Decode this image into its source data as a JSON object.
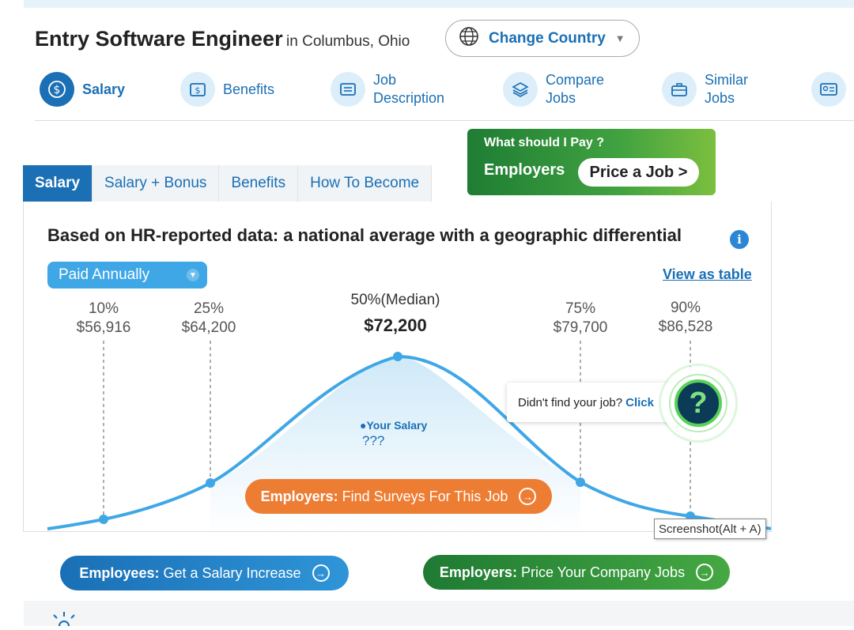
{
  "header": {
    "job_title": "Entry Software Engineer",
    "location": "in Columbus, Ohio",
    "change_country": "Change Country"
  },
  "nav": {
    "items": [
      {
        "label_1": "Salary",
        "label_2": "",
        "icon": "dollar-icon"
      },
      {
        "label_1": "Benefits",
        "label_2": "",
        "icon": "wallet-icon"
      },
      {
        "label_1": "Job",
        "label_2": "Description",
        "icon": "document-icon"
      },
      {
        "label_1": "Compare",
        "label_2": "Jobs",
        "icon": "layers-icon"
      },
      {
        "label_1": "Similar",
        "label_2": "Jobs",
        "icon": "briefcase-icon"
      }
    ]
  },
  "promo": {
    "question": "What should I Pay ?",
    "employers": "Employers",
    "price_button": "Price a Job >"
  },
  "tabs": [
    "Salary",
    "Salary + Bonus",
    "Benefits",
    "How To Become"
  ],
  "panel": {
    "title": "Based on HR-reported data: a national average with a geographic differential",
    "paid_select": "Paid Annually",
    "view_table": "View as table"
  },
  "percentiles": [
    {
      "pct": "10%",
      "value": "$56,916"
    },
    {
      "pct": "25%",
      "value": "$64,200"
    },
    {
      "pct": "50%(Median)",
      "value": "$72,200"
    },
    {
      "pct": "75%",
      "value": "$79,700"
    },
    {
      "pct": "90%",
      "value": "$86,528"
    }
  ],
  "your_salary": {
    "label": "Your Salary",
    "value": "???"
  },
  "find_surveys": {
    "bold": "Employers:",
    "text": "Find Surveys For This Job"
  },
  "didnt_find": {
    "text": "Didn't find your job?",
    "click": "Click"
  },
  "tooltip": "Screenshot(Alt + A)",
  "cta": {
    "employees_bold": "Employees:",
    "employees_text": "Get a Salary Increase",
    "employers_bold": "Employers:",
    "employers_text": "Price Your Company Jobs"
  },
  "colors": {
    "primary": "#1a6fb5",
    "accent_blue": "#3fa7e6",
    "orange": "#ee7d34",
    "green": "#3fa140"
  }
}
